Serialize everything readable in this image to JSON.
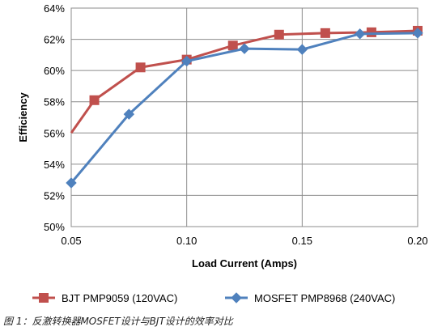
{
  "chart_data": {
    "type": "line",
    "xlabel": "Load Current (Amps)",
    "ylabel": "Efficiency",
    "xlim": [
      0.05,
      0.2
    ],
    "ylim": [
      50,
      64
    ],
    "x_ticks": [
      "0.05",
      "0.10",
      "0.15",
      "0.20"
    ],
    "y_ticks": [
      "50%",
      "52%",
      "54%",
      "56%",
      "58%",
      "60%",
      "62%",
      "64%"
    ],
    "grid": "vertical and horizontal major gridlines",
    "legend_position": "bottom",
    "series": [
      {
        "name": "BJT PMP9059 (120VAC)",
        "color": "#c0504d",
        "marker": "square",
        "x": [
          0.05,
          0.06,
          0.08,
          0.1,
          0.12,
          0.14,
          0.16,
          0.18,
          0.2
        ],
        "y": [
          56.0,
          58.1,
          60.2,
          60.7,
          61.6,
          62.3,
          62.4,
          62.45,
          62.55
        ]
      },
      {
        "name": "MOSFET PMP8968 (240VAC)",
        "color": "#4f81bd",
        "marker": "diamond",
        "x": [
          0.05,
          0.075,
          0.1,
          0.125,
          0.15,
          0.175,
          0.2
        ],
        "y": [
          52.8,
          57.2,
          60.6,
          61.4,
          61.35,
          62.35,
          62.4
        ]
      }
    ]
  },
  "caption": "图 1：反激转换器MOSFET设计与BJT设计的效率对比"
}
